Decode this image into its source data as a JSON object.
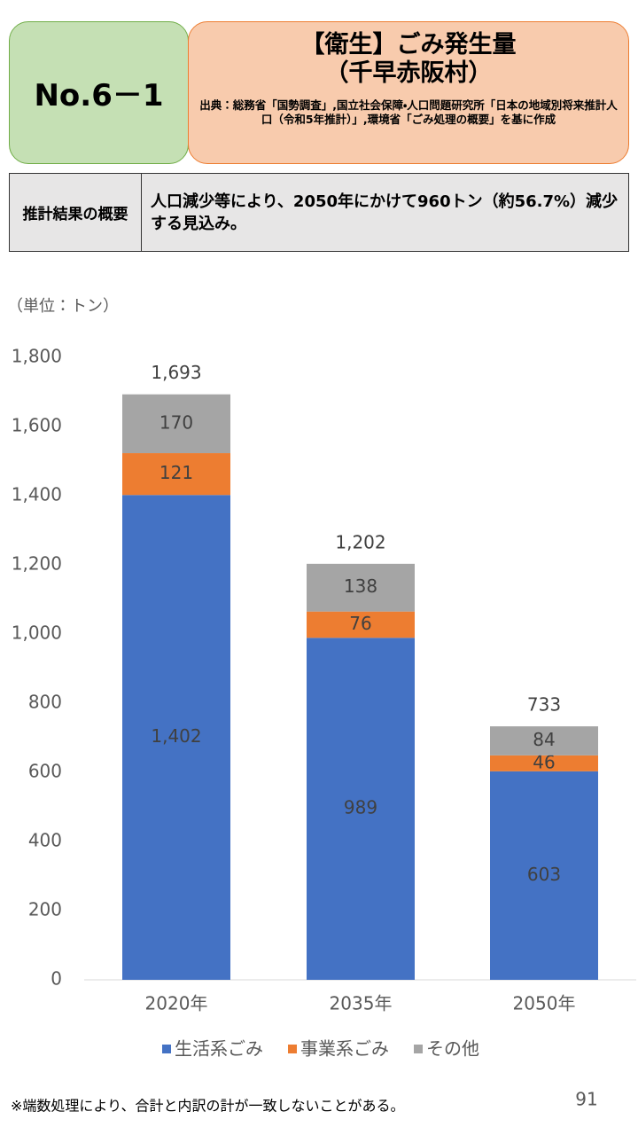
{
  "header": {
    "badge": "No.6－1",
    "title": "【衛生】ごみ発生量",
    "subtitle": "（千早赤阪村）",
    "source": "出典：総務省「国勢調査」,国立社会保障・人口問題研究所「日本の地域別将来推計人口（令和5年推計）」,環境省「ごみ処理の概要」を基に作成"
  },
  "summary": {
    "label": "推計結果の概要",
    "text": "人口減少等により、2050年にかけて960トン（約56.7%）減少する見込み。"
  },
  "chart_data": {
    "type": "stacked_bar",
    "unit_label": "（単位：トン）",
    "categories": [
      "2020年",
      "2035年",
      "2050年"
    ],
    "series": [
      {
        "name": "生活系ごみ",
        "color": "#4472c4",
        "values": [
          1402,
          989,
          603
        ],
        "value_labels": [
          "1,402",
          "989",
          "603"
        ]
      },
      {
        "name": "事業系ごみ",
        "color": "#ed7d31",
        "values": [
          121,
          76,
          46
        ]
      },
      {
        "name": "その他",
        "color": "#a5a5a5",
        "values": [
          170,
          138,
          84
        ]
      }
    ],
    "totals": {
      "values": [
        1693,
        1202,
        733
      ],
      "value_labels": [
        "1,693",
        "1,202",
        "733"
      ]
    },
    "ylim": [
      0,
      1800
    ],
    "yticks": [
      0,
      200,
      400,
      600,
      800,
      {
        "value": 1000,
        "label": "1,000"
      },
      {
        "value": 1200,
        "label": "1,200"
      },
      {
        "value": 1400,
        "label": "1,400"
      },
      {
        "value": 1600,
        "label": "1,600"
      },
      {
        "value": 1800,
        "label": "1,800"
      }
    ],
    "grid": false
  },
  "footer": {
    "note": "※端数処理により、合計と内訳の計が一致しないことがある。",
    "page": "91"
  }
}
